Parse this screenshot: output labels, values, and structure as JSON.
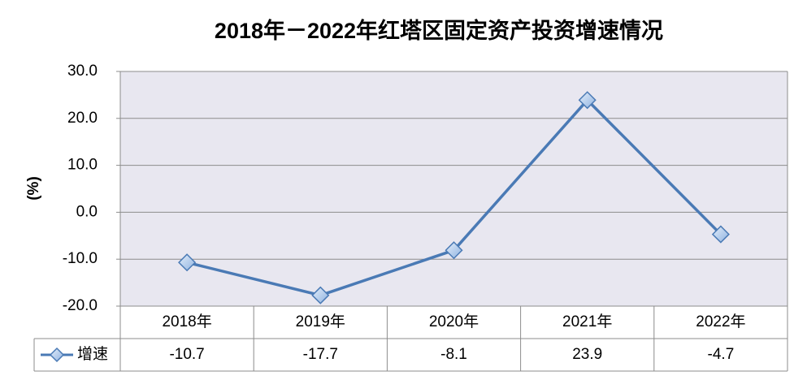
{
  "chart_data": {
    "type": "line",
    "title": "2018年－2022年红塔区固定资产投资增速情况",
    "y_label": "(%)",
    "categories": [
      "2018年",
      "2019年",
      "2020年",
      "2021年",
      "2022年"
    ],
    "series": [
      {
        "name": "增速",
        "color": "#4a7ab5",
        "values": [
          -10.7,
          -17.7,
          -8.1,
          23.9,
          -4.7
        ]
      }
    ],
    "ylim": [
      -20,
      30
    ],
    "yticks": [
      {
        "value": -20,
        "label": "-20.0"
      },
      {
        "value": -10,
        "label": "-10.0"
      },
      {
        "value": 0,
        "label": "0.0"
      },
      {
        "value": 10,
        "label": "10.0"
      },
      {
        "value": 20,
        "label": "20.0"
      },
      {
        "value": 30,
        "label": "30.0"
      }
    ],
    "grid": true,
    "data_table": true
  }
}
